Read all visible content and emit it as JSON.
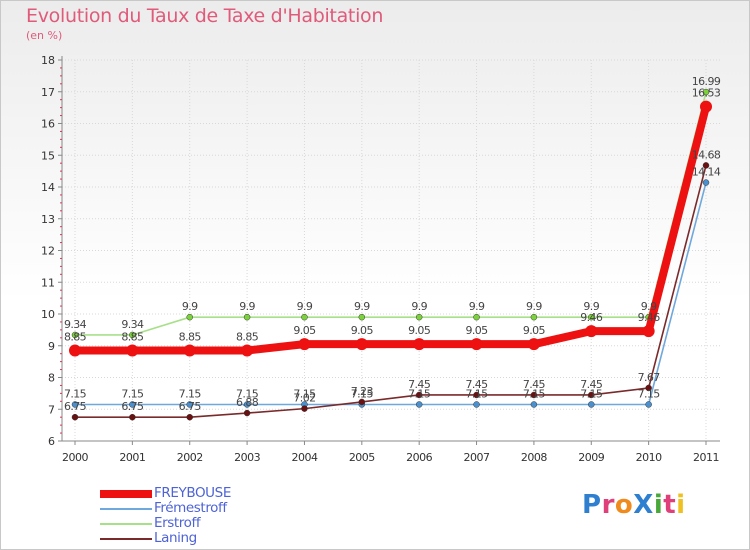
{
  "header": {
    "title": "Evolution du Taux de Taxe d'Habitation",
    "subtitle": "(en %)"
  },
  "logo": {
    "text": "ProXiti",
    "colors": [
      "#2f7fd0",
      "#e0407a",
      "#f08a1c",
      "#2f7fd0",
      "#49a83a",
      "#e0407a",
      "#f0c020"
    ]
  },
  "chart_data": {
    "type": "line",
    "title": "Evolution du Taux de Taxe d'Habitation",
    "ylabel": "(en %)",
    "xlabel": "",
    "ylim": [
      6,
      18
    ],
    "y_ticks": [
      "6",
      "7",
      "8",
      "9",
      "10",
      "11",
      "12",
      "13",
      "14",
      "15",
      "16",
      "17",
      "18"
    ],
    "categories": [
      "2000",
      "2001",
      "2002",
      "2003",
      "2004",
      "2005",
      "2006",
      "2007",
      "2008",
      "2009",
      "2010",
      "2011"
    ],
    "series": [
      {
        "name": "Frémestroff",
        "color": "#6fa8dc",
        "marker": "#4a8fce",
        "values": [
          7.15,
          7.15,
          7.15,
          7.15,
          7.15,
          7.15,
          7.15,
          7.15,
          7.15,
          7.15,
          7.15,
          14.14
        ],
        "labels": [
          "7.15",
          "7.15",
          "7.15",
          "7.15",
          "7.15",
          "7.15",
          "7.15",
          "7.15",
          "7.15",
          "7.15",
          "7.15",
          "14.14"
        ]
      },
      {
        "name": "Laning",
        "color": "#7a2a2a",
        "marker": "#6a1010",
        "values": [
          6.75,
          6.75,
          6.75,
          6.88,
          7.02,
          7.23,
          7.45,
          7.45,
          7.45,
          7.45,
          7.67,
          14.68
        ],
        "labels": [
          "6.75",
          "6.75",
          "6.75",
          "6.88",
          "7.02",
          "7.23",
          "7.45",
          "7.45",
          "7.45",
          "7.45",
          "7.67",
          "14.68"
        ]
      },
      {
        "name": "Erstroff",
        "color": "#a8e08a",
        "marker": "#7cd23a",
        "values": [
          9.34,
          9.34,
          9.9,
          9.9,
          9.9,
          9.9,
          9.9,
          9.9,
          9.9,
          9.9,
          9.9,
          16.99
        ],
        "labels": [
          "9.34",
          "9.34",
          "9.9",
          "9.9",
          "9.9",
          "9.9",
          "9.9",
          "9.9",
          "9.9",
          "9.9",
          "9.9",
          "16.99"
        ]
      },
      {
        "name": "FREYBOUSE",
        "color": "#ee1111",
        "marker": "#ee1111",
        "values": [
          8.85,
          8.85,
          8.85,
          8.85,
          9.05,
          9.05,
          9.05,
          9.05,
          9.05,
          9.46,
          9.46,
          16.53
        ],
        "labels": [
          "8.85",
          "8.85",
          "8.85",
          "8.85",
          "9.05",
          "9.05",
          "9.05",
          "9.05",
          "9.05",
          "9.46",
          "9.46",
          "16.53"
        ]
      }
    ],
    "legend": [
      {
        "name": "FREYBOUSE",
        "color": "#ee1111"
      },
      {
        "name": "Frémestroff",
        "color": "#6fa8dc"
      },
      {
        "name": "Erstroff",
        "color": "#a8e08a"
      },
      {
        "name": "Laning",
        "color": "#7a2a2a"
      }
    ],
    "legend_position": "bottom-left"
  }
}
